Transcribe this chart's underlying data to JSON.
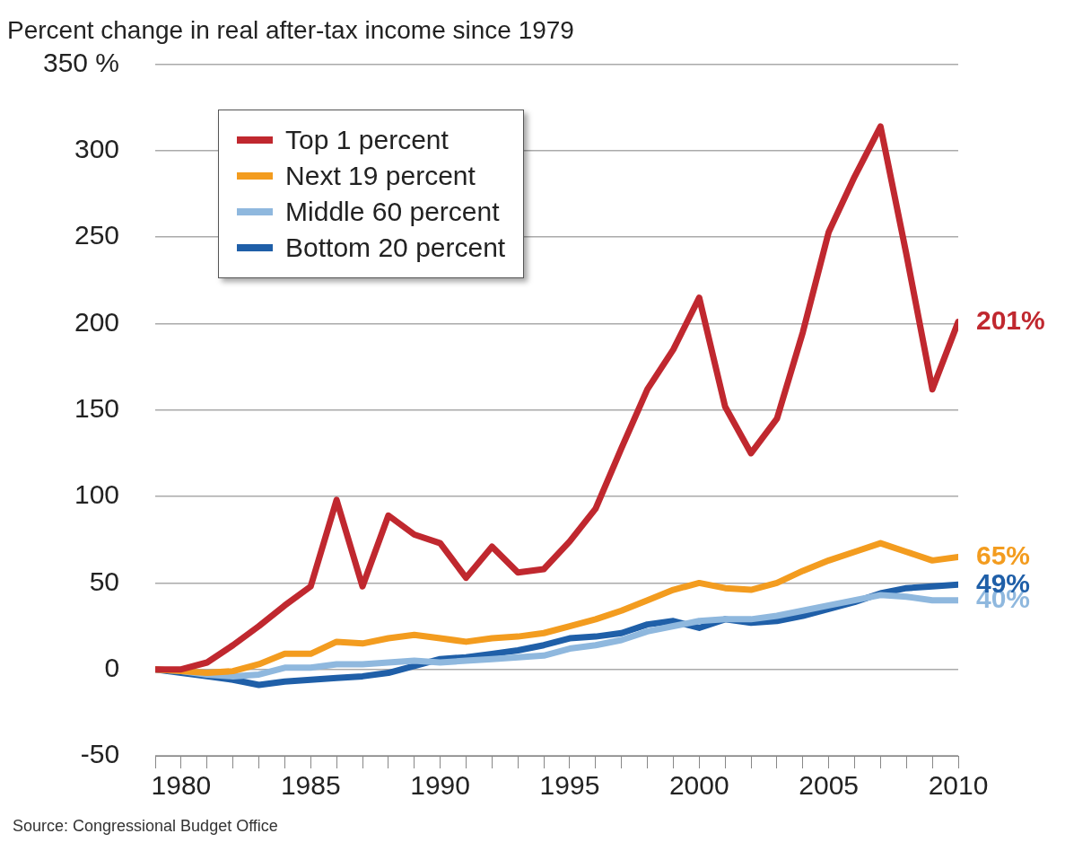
{
  "chart_data": {
    "type": "line",
    "title": "Percent change in real after-tax income since 1979",
    "x": [
      1979,
      1980,
      1981,
      1982,
      1983,
      1984,
      1985,
      1986,
      1987,
      1988,
      1989,
      1990,
      1991,
      1992,
      1993,
      1994,
      1995,
      1996,
      1997,
      1998,
      1999,
      2000,
      2001,
      2002,
      2003,
      2004,
      2005,
      2006,
      2007,
      2008,
      2009,
      2010
    ],
    "series": [
      {
        "name": "Top 1 percent",
        "color": "#c0282f",
        "values": [
          0,
          0,
          4,
          14,
          25,
          37,
          48,
          98,
          48,
          89,
          78,
          73,
          53,
          71,
          56,
          58,
          74,
          93,
          128,
          162,
          185,
          215,
          152,
          125,
          145,
          195,
          253,
          285,
          314,
          240,
          162,
          201
        ],
        "value_labels": [
          null,
          null,
          null,
          null,
          null,
          null,
          null,
          null,
          null,
          null,
          null,
          null,
          null,
          null,
          null,
          null,
          null,
          null,
          null,
          null,
          null,
          null,
          null,
          null,
          null,
          null,
          null,
          null,
          null,
          null,
          null,
          "201%"
        ]
      },
      {
        "name": "Next 19 percent",
        "color": "#f39c1f",
        "values": [
          0,
          -1,
          -2,
          -1,
          3,
          9,
          9,
          16,
          15,
          18,
          20,
          18,
          16,
          18,
          19,
          21,
          25,
          29,
          34,
          40,
          46,
          50,
          47,
          46,
          50,
          57,
          63,
          68,
          73,
          68,
          63,
          65
        ],
        "value_labels": [
          null,
          null,
          null,
          null,
          null,
          null,
          null,
          null,
          null,
          null,
          null,
          null,
          null,
          null,
          null,
          null,
          null,
          null,
          null,
          null,
          null,
          null,
          null,
          null,
          null,
          null,
          null,
          null,
          null,
          null,
          null,
          "65%"
        ]
      },
      {
        "name": "Middle 60 percent",
        "color": "#8fb8de",
        "values": [
          0,
          -1,
          -3,
          -4,
          -3,
          1,
          1,
          3,
          3,
          4,
          5,
          4,
          5,
          6,
          7,
          8,
          12,
          14,
          17,
          22,
          25,
          28,
          29,
          29,
          31,
          34,
          37,
          40,
          43,
          42,
          40,
          40
        ],
        "value_labels": [
          null,
          null,
          null,
          null,
          null,
          null,
          null,
          null,
          null,
          null,
          null,
          null,
          null,
          null,
          null,
          null,
          null,
          null,
          null,
          null,
          null,
          null,
          null,
          null,
          null,
          null,
          null,
          null,
          null,
          null,
          null,
          "40%"
        ]
      },
      {
        "name": "Bottom 20 percent",
        "color": "#1f5fa8",
        "values": [
          0,
          -2,
          -4,
          -6,
          -9,
          -7,
          -6,
          -5,
          -4,
          -2,
          2,
          6,
          7,
          9,
          11,
          14,
          18,
          19,
          21,
          26,
          28,
          24,
          29,
          27,
          28,
          31,
          35,
          39,
          44,
          47,
          48,
          49
        ],
        "value_labels": [
          null,
          null,
          null,
          null,
          null,
          null,
          null,
          null,
          null,
          null,
          null,
          null,
          null,
          null,
          null,
          null,
          null,
          null,
          null,
          null,
          null,
          null,
          null,
          null,
          null,
          null,
          null,
          null,
          null,
          null,
          null,
          "49%"
        ]
      }
    ],
    "xlim": [
      1979,
      2010
    ],
    "xticks": [
      {
        "value": 1979,
        "label": null
      },
      1980,
      {
        "value": 1981,
        "label": null
      },
      {
        "value": 1982,
        "label": null
      },
      {
        "value": 1983,
        "label": null
      },
      {
        "value": 1984,
        "label": null
      },
      1985,
      {
        "value": 1986,
        "label": null
      },
      {
        "value": 1987,
        "label": null
      },
      {
        "value": 1988,
        "label": null
      },
      {
        "value": 1989,
        "label": null
      },
      1990,
      {
        "value": 1991,
        "label": null
      },
      {
        "value": 1992,
        "label": null
      },
      {
        "value": 1993,
        "label": null
      },
      {
        "value": 1994,
        "label": null
      },
      1995,
      {
        "value": 1996,
        "label": null
      },
      {
        "value": 1997,
        "label": null
      },
      {
        "value": 1998,
        "label": null
      },
      {
        "value": 1999,
        "label": null
      },
      2000,
      {
        "value": 2001,
        "label": null
      },
      {
        "value": 2002,
        "label": null
      },
      {
        "value": 2003,
        "label": null
      },
      {
        "value": 2004,
        "label": null
      },
      2005,
      {
        "value": 2006,
        "label": null
      },
      {
        "value": 2007,
        "label": null
      },
      {
        "value": 2008,
        "label": null
      },
      {
        "value": 2009,
        "label": null
      },
      2010
    ],
    "ylim": [
      -50,
      350
    ],
    "yticks": [
      -50,
      0,
      50,
      100,
      150,
      200,
      250,
      300,
      {
        "value": 350,
        "label": "350 %"
      }
    ],
    "grid": "y",
    "legend": "top left",
    "marker": "none",
    "line_style": "solid",
    "annotations": [
      "Source: Congressional Budget Office"
    ]
  }
}
